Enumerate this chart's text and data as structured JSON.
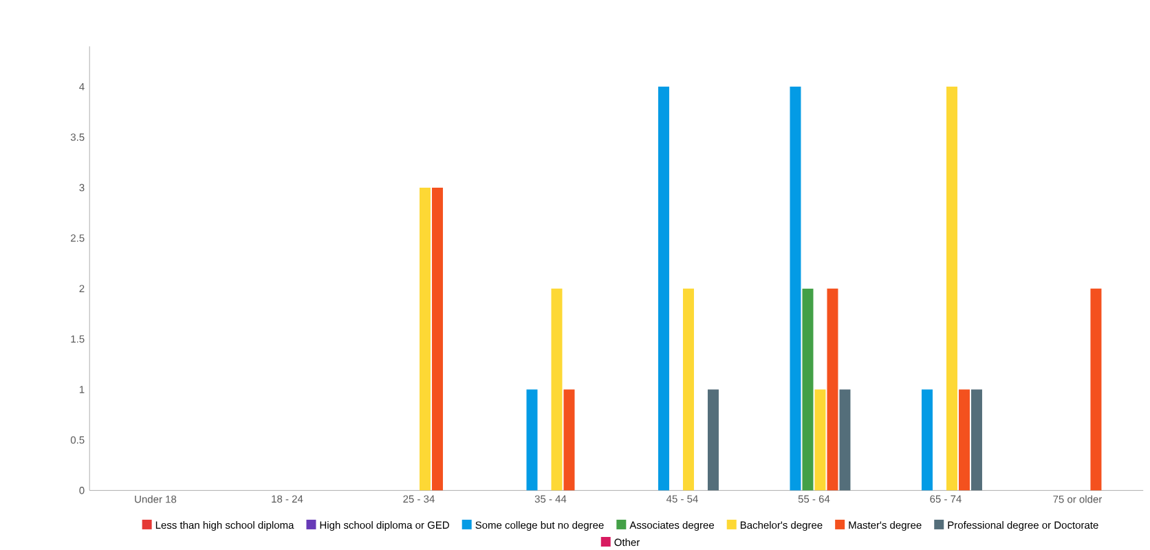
{
  "chart_data": {
    "type": "bar",
    "categories": [
      "Under 18",
      "18 - 24",
      "25 - 34",
      "35 - 44",
      "45 - 54",
      "55 - 64",
      "65 - 74",
      "75 or older"
    ],
    "series": [
      {
        "name": "Less than high school diploma",
        "color": "#e53935",
        "values": [
          0,
          0,
          0,
          0,
          0,
          0,
          0,
          0
        ]
      },
      {
        "name": "High school diploma or GED",
        "color": "#673ab7",
        "values": [
          0,
          0,
          0,
          0,
          0,
          0,
          0,
          0
        ]
      },
      {
        "name": "Some college but no degree",
        "color": "#039be5",
        "values": [
          0,
          0,
          0,
          1,
          4,
          4,
          1,
          0
        ]
      },
      {
        "name": "Associates degree",
        "color": "#43a047",
        "values": [
          0,
          0,
          0,
          0,
          0,
          2,
          0,
          0
        ]
      },
      {
        "name": "Bachelor's degree",
        "color": "#fdd835",
        "values": [
          0,
          0,
          3,
          2,
          2,
          1,
          4,
          0
        ]
      },
      {
        "name": "Master's degree",
        "color": "#f4511e",
        "values": [
          0,
          0,
          3,
          1,
          0,
          2,
          1,
          2
        ]
      },
      {
        "name": "Professional degree or Doctorate",
        "color": "#546e7a",
        "values": [
          0,
          0,
          0,
          0,
          1,
          1,
          1,
          0
        ]
      },
      {
        "name": "Other",
        "color": "#d81b60",
        "values": [
          0,
          0,
          0,
          0,
          0,
          0,
          0,
          0
        ]
      }
    ],
    "ylim": [
      0,
      4.4
    ],
    "yticks": [
      0,
      0.5,
      1,
      1.5,
      2,
      2.5,
      3,
      3.5,
      4
    ],
    "legend": "bottom",
    "grid": false
  }
}
